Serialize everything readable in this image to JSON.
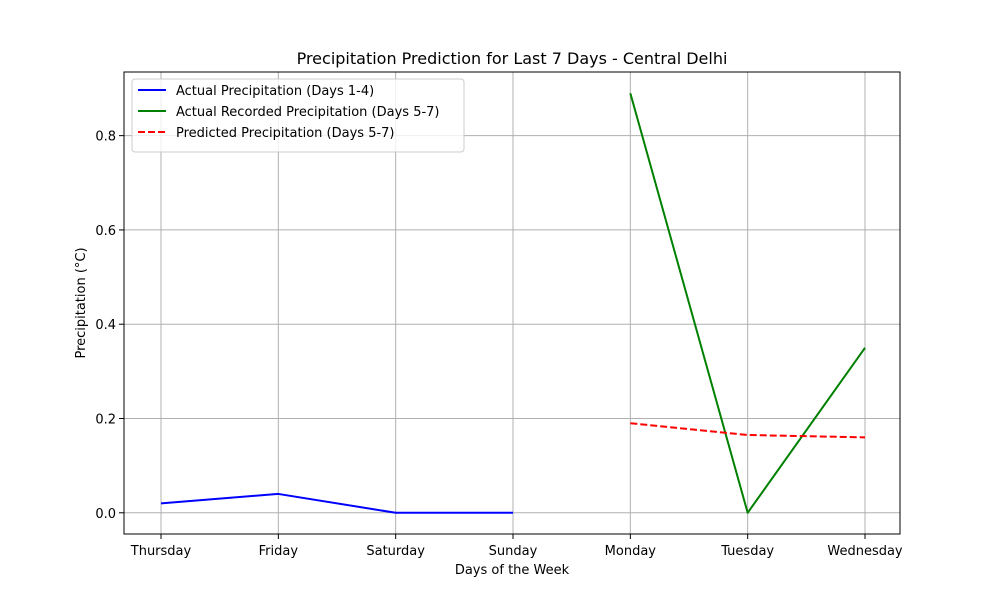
{
  "chart_data": {
    "type": "line",
    "title": "Precipitation Prediction for Last 7 Days - Central Delhi",
    "xlabel": "Days of the Week",
    "ylabel": "Precipitation (°C)",
    "categories": [
      "Thursday",
      "Friday",
      "Saturday",
      "Sunday",
      "Monday",
      "Tuesday",
      "Wednesday"
    ],
    "ylim": [
      -0.045,
      0.935
    ],
    "yticks": [
      0.0,
      0.2,
      0.4,
      0.6,
      0.8
    ],
    "ytick_labels": [
      "0.0",
      "0.2",
      "0.4",
      "0.6",
      "0.8"
    ],
    "grid": true,
    "legend_position": "top-left",
    "series": [
      {
        "name": "Actual Precipitation (Days 1-4)",
        "color": "#0000ff",
        "style": "solid",
        "x": [
          "Thursday",
          "Friday",
          "Saturday",
          "Sunday"
        ],
        "values": [
          0.02,
          0.04,
          0.0,
          0.0
        ]
      },
      {
        "name": "Actual Recorded Precipitation (Days 5-7)",
        "color": "#008000",
        "style": "solid",
        "x": [
          "Monday",
          "Tuesday",
          "Wednesday"
        ],
        "values": [
          0.89,
          0.0,
          0.35
        ]
      },
      {
        "name": "Predicted Precipitation (Days 5-7)",
        "color": "#ff0000",
        "style": "dashed",
        "x": [
          "Monday",
          "Tuesday",
          "Wednesday"
        ],
        "values": [
          0.19,
          0.165,
          0.16
        ]
      }
    ]
  }
}
